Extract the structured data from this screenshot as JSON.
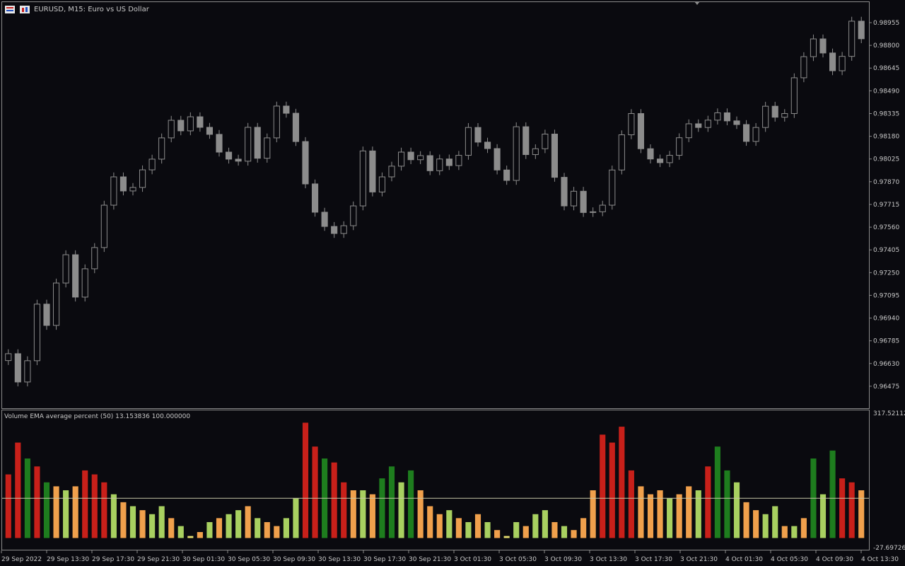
{
  "header": {
    "symbol": "EURUSD, M15:  Euro vs US Dollar"
  },
  "chart_data": [
    {
      "type": "candlestick",
      "color": "#8c8c8c",
      "open": [
        0.9665,
        0.96697,
        0.96504,
        0.96649,
        0.97035,
        0.9689,
        0.97179,
        0.97372,
        0.97083,
        0.97276,
        0.97421,
        0.9771,
        0.97903,
        0.97807,
        0.97831,
        0.97951,
        0.98024,
        0.98169,
        0.98289,
        0.98217,
        0.98313,
        0.98241,
        0.98193,
        0.98072,
        0.98024,
        0.9801,
        0.98241,
        0.9803,
        0.98169,
        0.98386,
        0.98337,
        0.98144,
        0.97855,
        0.97662,
        0.97565,
        0.97517,
        0.9757,
        0.97705,
        0.9808,
        0.978,
        0.97903,
        0.97976,
        0.98072,
        0.9802,
        0.98048,
        0.97945,
        0.98025,
        0.9798,
        0.9805,
        0.9824,
        0.9814,
        0.98096,
        0.9795,
        0.97879,
        0.98245,
        0.98055,
        0.98095,
        0.98195,
        0.979,
        0.97705,
        0.97805,
        0.9766,
        0.97665,
        0.9771,
        0.9795,
        0.9819,
        0.98335,
        0.98095,
        0.98025,
        0.98,
        0.9805,
        0.9817,
        0.98265,
        0.9824,
        0.9829,
        0.9834,
        0.98285,
        0.9826,
        0.98145,
        0.9824,
        0.98385,
        0.9831,
        0.98335,
        0.98579,
        0.98723,
        0.98844,
        0.98748,
        0.98627,
        0.98725,
        0.98965
      ],
      "high": [
        0.96727,
        0.96727,
        0.96679,
        0.97065,
        0.97065,
        0.97209,
        0.97402,
        0.97402,
        0.97306,
        0.97451,
        0.9774,
        0.97933,
        0.97933,
        0.97861,
        0.97981,
        0.98054,
        0.98199,
        0.98319,
        0.98319,
        0.98343,
        0.98343,
        0.98271,
        0.98223,
        0.98102,
        0.98054,
        0.98271,
        0.98271,
        0.98199,
        0.98416,
        0.98416,
        0.98367,
        0.98174,
        0.97885,
        0.97692,
        0.97595,
        0.976,
        0.97735,
        0.9811,
        0.9811,
        0.97933,
        0.98006,
        0.98102,
        0.98102,
        0.98078,
        0.98078,
        0.98055,
        0.98055,
        0.9808,
        0.9827,
        0.9827,
        0.9817,
        0.98126,
        0.9798,
        0.98275,
        0.98275,
        0.98125,
        0.98225,
        0.98225,
        0.9793,
        0.97835,
        0.97835,
        0.97695,
        0.9774,
        0.9798,
        0.9822,
        0.98365,
        0.98365,
        0.98125,
        0.98055,
        0.9808,
        0.982,
        0.98295,
        0.98295,
        0.9832,
        0.9837,
        0.9837,
        0.98315,
        0.9829,
        0.9827,
        0.98415,
        0.98415,
        0.98365,
        0.98609,
        0.98753,
        0.98874,
        0.98874,
        0.98778,
        0.98755,
        0.98995,
        0.98995
      ],
      "low": [
        0.9662,
        0.96474,
        0.96474,
        0.96619,
        0.9686,
        0.9686,
        0.97149,
        0.97053,
        0.97053,
        0.97246,
        0.97391,
        0.9768,
        0.97777,
        0.97777,
        0.97801,
        0.97921,
        0.97994,
        0.98139,
        0.98187,
        0.98187,
        0.98211,
        0.98163,
        0.98042,
        0.97994,
        0.9798,
        0.9798,
        0.98,
        0.98,
        0.98139,
        0.98307,
        0.98114,
        0.97825,
        0.97632,
        0.97535,
        0.97487,
        0.97487,
        0.9754,
        0.97675,
        0.9777,
        0.9777,
        0.97873,
        0.97946,
        0.9799,
        0.9799,
        0.97915,
        0.97915,
        0.9795,
        0.9795,
        0.9802,
        0.9811,
        0.98066,
        0.9792,
        0.97849,
        0.97849,
        0.98025,
        0.98025,
        0.98065,
        0.9787,
        0.97675,
        0.97675,
        0.9763,
        0.9763,
        0.97635,
        0.9768,
        0.9792,
        0.9816,
        0.98065,
        0.97995,
        0.9797,
        0.9797,
        0.9802,
        0.9814,
        0.9821,
        0.9821,
        0.9826,
        0.98255,
        0.9823,
        0.98115,
        0.98115,
        0.9821,
        0.9828,
        0.9828,
        0.98305,
        0.98549,
        0.98693,
        0.98718,
        0.98597,
        0.98597,
        0.98695,
        0.98815
      ],
      "close": [
        0.96697,
        0.96504,
        0.96649,
        0.97035,
        0.9689,
        0.97179,
        0.97372,
        0.97083,
        0.97276,
        0.97421,
        0.9771,
        0.97903,
        0.97807,
        0.97831,
        0.97951,
        0.98024,
        0.98169,
        0.98289,
        0.98217,
        0.98313,
        0.98241,
        0.98193,
        0.98072,
        0.98024,
        0.9801,
        0.98241,
        0.9803,
        0.98169,
        0.98386,
        0.98337,
        0.98144,
        0.97855,
        0.97662,
        0.97565,
        0.97517,
        0.9757,
        0.97705,
        0.9808,
        0.978,
        0.97903,
        0.97976,
        0.98072,
        0.9802,
        0.98048,
        0.97945,
        0.98025,
        0.9798,
        0.9805,
        0.9824,
        0.9814,
        0.98096,
        0.9795,
        0.97879,
        0.98245,
        0.98055,
        0.98095,
        0.98195,
        0.979,
        0.97705,
        0.97805,
        0.9766,
        0.97665,
        0.9771,
        0.9795,
        0.9819,
        0.98335,
        0.98095,
        0.98025,
        0.98,
        0.9805,
        0.9817,
        0.98265,
        0.9824,
        0.9829,
        0.9834,
        0.98285,
        0.9826,
        0.98145,
        0.9824,
        0.98385,
        0.9831,
        0.98335,
        0.98579,
        0.98723,
        0.98844,
        0.98748,
        0.98627,
        0.98725,
        0.98965,
        0.98845
      ],
      "ylim": [
        0.96325,
        0.99095
      ],
      "yticks": [
        {
          "value": 0.98955,
          "label": "0.98955"
        },
        {
          "value": 0.988,
          "label": "0.98800"
        },
        {
          "value": 0.98645,
          "label": "0.98645"
        },
        {
          "value": 0.9849,
          "label": "0.98490"
        },
        {
          "value": 0.98335,
          "label": "0.98335"
        },
        {
          "value": 0.9818,
          "label": "0.98180"
        },
        {
          "value": 0.98025,
          "label": "0.98025"
        },
        {
          "value": 0.9787,
          "label": "0.97870"
        },
        {
          "value": 0.97715,
          "label": "0.97715"
        },
        {
          "value": 0.9756,
          "label": "0.97560"
        },
        {
          "value": 0.97405,
          "label": "0.97405"
        },
        {
          "value": 0.9725,
          "label": "0.97250"
        },
        {
          "value": 0.97095,
          "label": "0.97095"
        },
        {
          "value": 0.9694,
          "label": "0.96940"
        },
        {
          "value": 0.96785,
          "label": "0.96785"
        },
        {
          "value": 0.9663,
          "label": "0.96630"
        },
        {
          "value": 0.96475,
          "label": "0.96475"
        }
      ],
      "x_labels": [
        "29 Sep 2022",
        "29 Sep 13:30",
        "29 Sep 17:30",
        "29 Sep 21:30",
        "30 Sep 01:30",
        "30 Sep 05:30",
        "30 Sep 09:30",
        "30 Sep 13:30",
        "30 Sep 17:30",
        "30 Sep 21:30",
        "3 Oct 01:30",
        "3 Oct 05:30",
        "3 Oct 09:30",
        "3 Oct 13:30",
        "3 Oct 17:30",
        "3 Oct 21:30",
        "4 Oct 01:30",
        "4 Oct 05:30",
        "4 Oct 09:30",
        "4 Oct 13:30"
      ]
    },
    {
      "type": "bar",
      "title": "Volume EMA average percent (50) 13.153836 100.000000",
      "values": [
        160,
        240,
        200,
        180,
        140,
        130,
        120,
        130,
        170,
        160,
        140,
        110,
        90,
        80,
        70,
        60,
        80,
        50,
        30,
        5,
        15,
        40,
        50,
        60,
        70,
        80,
        50,
        40,
        30,
        50,
        100,
        290,
        230,
        200,
        190,
        140,
        120,
        120,
        110,
        150,
        180,
        140,
        170,
        120,
        80,
        60,
        70,
        50,
        40,
        60,
        40,
        20,
        5,
        40,
        30,
        60,
        70,
        40,
        30,
        20,
        50,
        120,
        260,
        240,
        280,
        170,
        130,
        110,
        120,
        100,
        110,
        130,
        120,
        180,
        230,
        170,
        140,
        90,
        70,
        60,
        80,
        30,
        30,
        50,
        200,
        110,
        220,
        150,
        140,
        120
      ],
      "colors": [
        "#c8201a",
        "#c8201a",
        "#1e7d1e",
        "#c8201a",
        "#1e7d1e",
        "#f0a04c",
        "#a8d060",
        "#f0a04c",
        "#c8201a",
        "#c8201a",
        "#c8201a",
        "#a8d060",
        "#f0a04c",
        "#a8d060",
        "#f0a04c",
        "#a8d060",
        "#a8d060",
        "#f0a04c",
        "#a8d060",
        "#e8e070",
        "#f0a04c",
        "#a8d060",
        "#f0a04c",
        "#a8d060",
        "#a8d060",
        "#f0a04c",
        "#a8d060",
        "#f0a04c",
        "#f0a04c",
        "#a8d060",
        "#a8d060",
        "#c8201a",
        "#c8201a",
        "#1e7d1e",
        "#c8201a",
        "#c8201a",
        "#f0a04c",
        "#a8d060",
        "#f0a04c",
        "#1e7d1e",
        "#1e7d1e",
        "#a8d060",
        "#1e7d1e",
        "#f0a04c",
        "#f0a04c",
        "#f0a04c",
        "#a8d060",
        "#f0a04c",
        "#a8d060",
        "#f0a04c",
        "#a8d060",
        "#f0a04c",
        "#e8e070",
        "#a8d060",
        "#f0a04c",
        "#a8d060",
        "#a8d060",
        "#f0a04c",
        "#a8d060",
        "#f0a04c",
        "#f0a04c",
        "#f0a04c",
        "#c8201a",
        "#c8201a",
        "#c8201a",
        "#c8201a",
        "#f0a04c",
        "#f0a04c",
        "#f0a04c",
        "#a8d060",
        "#f0a04c",
        "#f0a04c",
        "#a8d060",
        "#c8201a",
        "#1e7d1e",
        "#1e7d1e",
        "#a8d060",
        "#f0a04c",
        "#f0a04c",
        "#a8d060",
        "#a8d060",
        "#f0a04c",
        "#a8d060",
        "#f0a04c",
        "#1e7d1e",
        "#a8d060",
        "#1e7d1e",
        "#c8201a",
        "#c8201a",
        "#f0a04c"
      ],
      "ylim": [
        -27.697265,
        317.521121
      ],
      "yticks": [
        317.521121,
        -27.697265
      ],
      "levels": [
        100
      ],
      "level_color": "#c8c8a8"
    }
  ]
}
